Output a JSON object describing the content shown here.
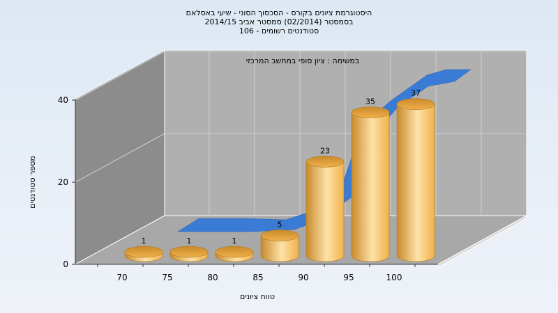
{
  "title_lines": [
    "היסטוגרמת ציונים בקורס - הסכסוך הסוני - שיעי באסלאם",
    "בסמסטר  (02/2014)  סמסטר אביב 2014/15",
    "סטודנטים רשומים - 106"
  ],
  "chart_data": {
    "type": "bar",
    "title": "היסטוגרמת ציונים בקורס - הסכסוך הסוני - שיעי באסלאם",
    "subtitle": "במשימה : ציון סופי במחשב המרכזי",
    "xlabel": "טווח ציונים",
    "ylabel": "מספר סטודנטים",
    "categories": [
      "70",
      "75",
      "80",
      "85",
      "90",
      "95",
      "100"
    ],
    "values": [
      1,
      1,
      1,
      5,
      23,
      35,
      37
    ],
    "data_labels": [
      "1",
      "1",
      "1",
      "5",
      "23",
      "35",
      "37"
    ],
    "y_ticks": [
      "0",
      "20",
      "40"
    ],
    "ylim": [
      0,
      40
    ],
    "grid": true,
    "style": "3d-cylinder",
    "colors": {
      "bar": "#f0b04a",
      "bar_dark": "#c98a2c",
      "bar_light": "#fde3a8",
      "cumulative_ribbon": "#3a7bd5",
      "back_wall": "#b0b0b0",
      "side_wall": "#8c8c8c",
      "floor": "#a8a8a8"
    }
  }
}
